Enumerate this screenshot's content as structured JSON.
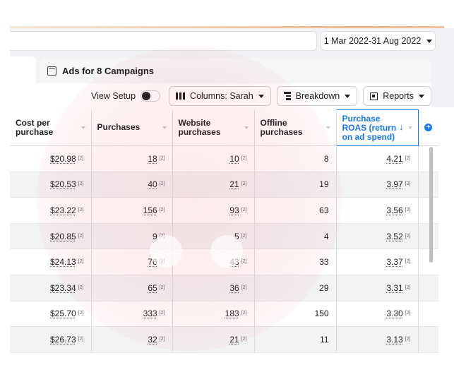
{
  "date_range": "1 Mar 2022-31 Aug 2022",
  "tab": {
    "label": "Ads for 8 Campaigns"
  },
  "toolbar": {
    "view_setup": "View Setup",
    "columns": "Columns: Sarah",
    "breakdown": "Breakdown",
    "reports": "Reports"
  },
  "table": {
    "columns": [
      {
        "label": "Cost per purchase"
      },
      {
        "label": "Purchases"
      },
      {
        "label": "Website purchases"
      },
      {
        "label": "Offline purchases"
      },
      {
        "label": "Purchase ROAS (return on ad spend)"
      }
    ],
    "footnote_marker": "[2]",
    "rows": [
      {
        "cost": "$20.98",
        "purchases": "18",
        "website": "10",
        "offline": "8",
        "roas": "4.21"
      },
      {
        "cost": "$20.53",
        "purchases": "40",
        "website": "21",
        "offline": "19",
        "roas": "3.97"
      },
      {
        "cost": "$23.22",
        "purchases": "156",
        "website": "93",
        "offline": "63",
        "roas": "3.56"
      },
      {
        "cost": "$20.85",
        "purchases": "9",
        "website": "5",
        "offline": "4",
        "roas": "3.52"
      },
      {
        "cost": "$24.13",
        "purchases": "76",
        "website": "43",
        "offline": "33",
        "roas": "3.37"
      },
      {
        "cost": "$23.34",
        "purchases": "65",
        "website": "36",
        "offline": "29",
        "roas": "3.31"
      },
      {
        "cost": "$25.70",
        "purchases": "333",
        "website": "183",
        "offline": "150",
        "roas": "3.30"
      },
      {
        "cost": "$26.73",
        "purchases": "32",
        "website": "21",
        "offline": "11",
        "roas": "3.13"
      }
    ]
  },
  "colors": {
    "accent": "#1877f2",
    "watermark": "#ee3c3c"
  },
  "icons": {
    "date_caret": "chevron-down-icon",
    "tab_icon": "document-icon",
    "columns_icon": "columns-icon",
    "breakdown_icon": "breakdown-icon",
    "reports_icon": "reports-icon",
    "sort_icon": "sort-arrow-down-icon",
    "add_column_icon": "plus-circle-icon"
  }
}
